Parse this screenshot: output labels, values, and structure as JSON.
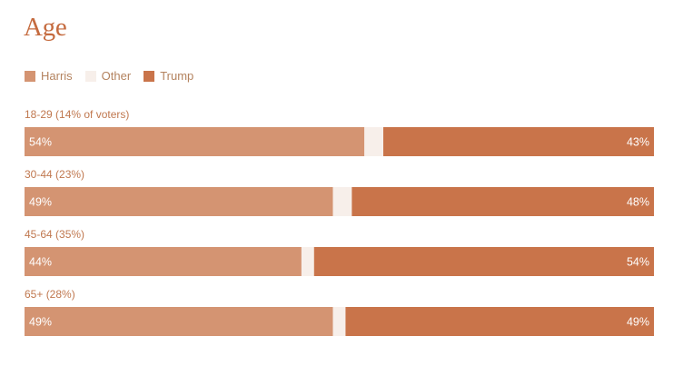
{
  "colors": {
    "harris": "#d49472",
    "other": "#f7efea",
    "trump": "#c9744a",
    "title": "#c56b3f"
  },
  "chart_data": {
    "type": "bar",
    "orientation": "horizontal-stacked",
    "title": "Age",
    "legend": [
      {
        "name": "Harris",
        "color": "#d49472"
      },
      {
        "name": "Other",
        "color": "#f7efea"
      },
      {
        "name": "Trump",
        "color": "#c9744a"
      }
    ],
    "categories": [
      "18-29 (14% of voters)",
      "30-44 (23%)",
      "45-64 (35%)",
      "65+ (28%)"
    ],
    "series": [
      {
        "name": "Harris",
        "values": [
          54,
          49,
          44,
          49
        ],
        "labels": [
          "54%",
          "49%",
          "44%",
          "49%"
        ]
      },
      {
        "name": "Other",
        "values": [
          3,
          3,
          2,
          2
        ]
      },
      {
        "name": "Trump",
        "values": [
          43,
          48,
          54,
          49
        ],
        "labels": [
          "43%",
          "48%",
          "54%",
          "49%"
        ]
      }
    ],
    "xlim": [
      0,
      100
    ]
  }
}
